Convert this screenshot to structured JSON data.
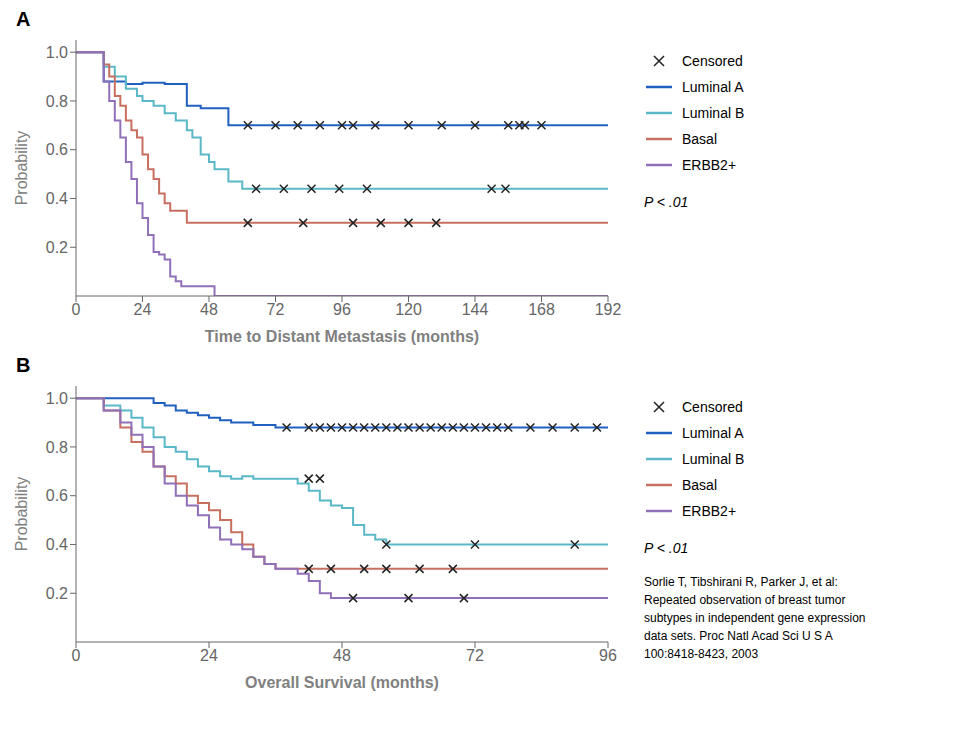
{
  "chart_data": [
    {
      "type": "line",
      "title": "A",
      "x_label": "Time to Distant Metastasis (months)",
      "y_label": "Probability",
      "xlim": [
        0,
        192
      ],
      "ylim": [
        0,
        1.05
      ],
      "xticks": [
        0,
        24,
        48,
        72,
        96,
        120,
        144,
        168,
        192
      ],
      "yticks": [
        0.2,
        0.4,
        0.6,
        0.8,
        {
          "value": 1.0,
          "label": "1.0"
        }
      ],
      "grid": false,
      "annotations": [
        "P < .01"
      ],
      "series": [
        {
          "name": "Censored",
          "type": "scatter",
          "marker": "x",
          "color": "#222222",
          "x": [
            62,
            72,
            80,
            88,
            96,
            100,
            108,
            120,
            132,
            144,
            156,
            160,
            162,
            168,
            65,
            75,
            85,
            95,
            105,
            150,
            155,
            62,
            82,
            100,
            110,
            120,
            130
          ],
          "values": [
            0.7,
            0.7,
            0.7,
            0.7,
            0.7,
            0.7,
            0.7,
            0.7,
            0.7,
            0.7,
            0.7,
            0.7,
            0.7,
            0.7,
            0.44,
            0.44,
            0.44,
            0.44,
            0.44,
            0.44,
            0.44,
            0.3,
            0.3,
            0.3,
            0.3,
            0.3,
            0.3
          ]
        },
        {
          "name": "Luminal A",
          "type": "line",
          "line_style": "step",
          "color": "#2060c0",
          "x": [
            0,
            8,
            10,
            14,
            18,
            22,
            24,
            28,
            32,
            36,
            40,
            42,
            45,
            50,
            55,
            60,
            192
          ],
          "values": [
            1.0,
            1.0,
            0.88,
            0.88,
            0.87,
            0.87,
            0.875,
            0.875,
            0.87,
            0.87,
            0.78,
            0.78,
            0.77,
            0.77,
            0.7,
            0.7,
            0.7
          ]
        },
        {
          "name": "Luminal B",
          "type": "line",
          "line_style": "step",
          "color": "#5bb8c8",
          "x": [
            0,
            8,
            10,
            14,
            18,
            22,
            24,
            28,
            32,
            36,
            40,
            42,
            45,
            48,
            50,
            55,
            60,
            192
          ],
          "values": [
            1.0,
            1.0,
            0.94,
            0.9,
            0.85,
            0.82,
            0.8,
            0.78,
            0.75,
            0.72,
            0.68,
            0.65,
            0.58,
            0.55,
            0.52,
            0.47,
            0.44,
            0.44
          ]
        },
        {
          "name": "Basal",
          "type": "line",
          "line_style": "step",
          "color": "#c87060",
          "x": [
            0,
            8,
            10,
            12,
            14,
            16,
            18,
            20,
            22,
            24,
            26,
            28,
            30,
            32,
            34,
            36,
            40,
            192
          ],
          "values": [
            1.0,
            1.0,
            0.95,
            0.9,
            0.82,
            0.78,
            0.72,
            0.68,
            0.65,
            0.58,
            0.52,
            0.48,
            0.42,
            0.38,
            0.35,
            0.35,
            0.3,
            0.3
          ]
        },
        {
          "name": "ERBB2+",
          "type": "line",
          "line_style": "step",
          "color": "#9070b8",
          "x": [
            0,
            8,
            10,
            12,
            14,
            16,
            18,
            20,
            22,
            24,
            26,
            28,
            30,
            32,
            34,
            36,
            38,
            50,
            192
          ],
          "values": [
            1.0,
            1.0,
            0.88,
            0.8,
            0.72,
            0.65,
            0.55,
            0.48,
            0.38,
            0.32,
            0.25,
            0.18,
            0.17,
            0.15,
            0.08,
            0.06,
            0.04,
            0.0,
            0.0
          ]
        }
      ]
    },
    {
      "type": "line",
      "title": "B",
      "x_label": "Overall Survival (months)",
      "y_label": "Probability",
      "xlim": [
        0,
        96
      ],
      "ylim": [
        0,
        1.05
      ],
      "xticks": [
        0,
        24,
        48,
        72,
        96
      ],
      "yticks": [
        0.2,
        0.4,
        0.6,
        0.8,
        {
          "value": 1.0,
          "label": "1.0"
        }
      ],
      "grid": false,
      "annotations": [
        "P < .01",
        "Sorlie T, Tibshirani R, Parker J, et al:\nRepeated observation of breast tumor\nsubtypes in independent gene expression\ndata sets. Proc Natl Acad Sci U S A\n100:8418-8423, 2003"
      ],
      "series": [
        {
          "name": "Censored",
          "type": "scatter",
          "marker": "x",
          "color": "#222222",
          "x": [
            38,
            42,
            44,
            46,
            48,
            50,
            52,
            54,
            56,
            58,
            60,
            62,
            64,
            66,
            68,
            70,
            72,
            74,
            76,
            78,
            82,
            86,
            90,
            94,
            42,
            44,
            56,
            72,
            90,
            42,
            46,
            52,
            56,
            62,
            68,
            50,
            60,
            70
          ],
          "values": [
            0.88,
            0.88,
            0.88,
            0.88,
            0.88,
            0.88,
            0.88,
            0.88,
            0.88,
            0.88,
            0.88,
            0.88,
            0.88,
            0.88,
            0.88,
            0.88,
            0.88,
            0.88,
            0.88,
            0.88,
            0.88,
            0.88,
            0.88,
            0.88,
            0.67,
            0.67,
            0.4,
            0.4,
            0.4,
            0.3,
            0.3,
            0.3,
            0.3,
            0.3,
            0.3,
            0.18,
            0.18,
            0.18
          ]
        },
        {
          "name": "Luminal A",
          "type": "line",
          "line_style": "step",
          "color": "#2060c0",
          "x": [
            0,
            5,
            8,
            12,
            14,
            16,
            18,
            20,
            22,
            24,
            26,
            28,
            30,
            32,
            34,
            36,
            38,
            40,
            96
          ],
          "values": [
            1.0,
            1.0,
            1.0,
            1.0,
            0.98,
            0.97,
            0.95,
            0.94,
            0.93,
            0.92,
            0.91,
            0.9,
            0.9,
            0.89,
            0.89,
            0.88,
            0.88,
            0.88,
            0.88
          ]
        },
        {
          "name": "Luminal B",
          "type": "line",
          "line_style": "step",
          "color": "#5bb8c8",
          "x": [
            0,
            5,
            8,
            10,
            12,
            14,
            16,
            18,
            20,
            22,
            24,
            26,
            28,
            30,
            32,
            34,
            36,
            38,
            40,
            42,
            44,
            46,
            48,
            50,
            52,
            54,
            56,
            96
          ],
          "values": [
            1.0,
            0.97,
            0.95,
            0.92,
            0.88,
            0.84,
            0.8,
            0.78,
            0.75,
            0.72,
            0.7,
            0.68,
            0.67,
            0.68,
            0.67,
            0.67,
            0.67,
            0.67,
            0.65,
            0.62,
            0.58,
            0.56,
            0.55,
            0.48,
            0.44,
            0.42,
            0.4,
            0.4
          ]
        },
        {
          "name": "Basal",
          "type": "line",
          "line_style": "step",
          "color": "#c87060",
          "x": [
            0,
            5,
            8,
            10,
            12,
            14,
            16,
            18,
            20,
            22,
            24,
            26,
            28,
            30,
            32,
            34,
            36,
            40,
            96
          ],
          "values": [
            1.0,
            0.95,
            0.88,
            0.82,
            0.78,
            0.72,
            0.68,
            0.65,
            0.6,
            0.57,
            0.54,
            0.5,
            0.45,
            0.4,
            0.35,
            0.32,
            0.3,
            0.3,
            0.3
          ]
        },
        {
          "name": "ERBB2+",
          "type": "line",
          "line_style": "step",
          "color": "#9070b8",
          "x": [
            0,
            5,
            8,
            10,
            12,
            14,
            16,
            18,
            20,
            22,
            24,
            26,
            28,
            30,
            32,
            34,
            36,
            40,
            42,
            44,
            46,
            48,
            96
          ],
          "values": [
            1.0,
            0.95,
            0.9,
            0.85,
            0.8,
            0.72,
            0.65,
            0.6,
            0.56,
            0.52,
            0.47,
            0.42,
            0.4,
            0.38,
            0.35,
            0.32,
            0.3,
            0.28,
            0.25,
            0.2,
            0.18,
            0.18,
            0.18
          ]
        }
      ]
    }
  ]
}
